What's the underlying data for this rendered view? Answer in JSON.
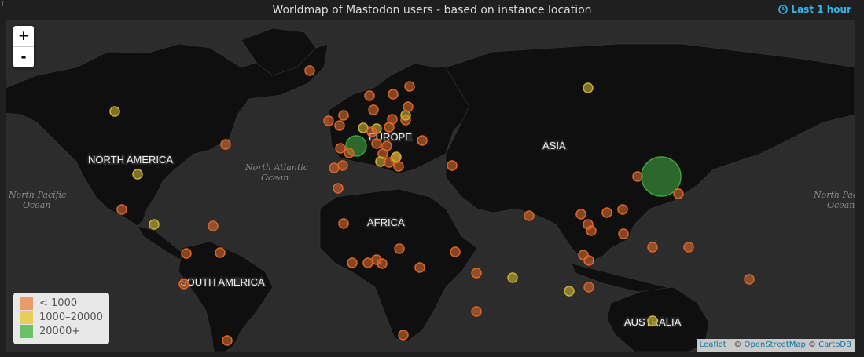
{
  "panel": {
    "title": "Worldmap of Mastodon users - based on instance location",
    "time_range": "Last 1 hour",
    "info_marker": "i"
  },
  "zoom": {
    "in_label": "+",
    "out_label": "-"
  },
  "legend": {
    "items": [
      {
        "label": "< 1000",
        "color": "#ea9b6b"
      },
      {
        "label": "1000–20000",
        "color": "#e5cf5a"
      },
      {
        "label": "20000+",
        "color": "#6dbf68"
      }
    ]
  },
  "attribution": {
    "leaflet": "Leaflet",
    "sep1": " | © ",
    "osm": "OpenStreetMap",
    "sep2": " © ",
    "carto": "CartoDB"
  },
  "map_labels": {
    "north_america": "NORTH AMERICA",
    "south_america": "SOUTH AMERICA",
    "europe": "EUROPE",
    "africa": "AFRICA",
    "asia": "ASIA",
    "australia": "AUSTRALIA",
    "north_atlantic_1": "North Atlantic",
    "north_atlantic_2": "Ocean",
    "north_pacific_1": "North Pacific",
    "north_pacific_2": "Ocean",
    "north_pacific_right_1": "North Pacific",
    "north_pacific_right_2": "Ocean"
  },
  "colors": {
    "small": "#d9662a",
    "medium": "#c9b133",
    "large": "#3fa13f",
    "land": "#0f0f0f",
    "water": "#2c2c2d"
  }
}
